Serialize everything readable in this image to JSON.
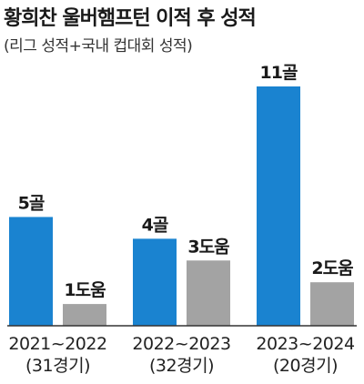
{
  "title": "황희찬 울버햄프턴 이적 후 성적",
  "subtitle": "(리그 성적+국내 컵대회 성적)",
  "colors": {
    "goals": "#1a83d0",
    "assists": "#a3a3a3",
    "axis": "#333333"
  },
  "chart_data": {
    "type": "bar",
    "categories": [
      "2021~2022",
      "2022~2023",
      "2023~2024"
    ],
    "category_notes": [
      "(31경기)",
      "(32경기)",
      "(20경기)"
    ],
    "series": [
      {
        "values": [
          5,
          4,
          11
        ],
        "labels": [
          "5골",
          "4골",
          "11골"
        ]
      },
      {
        "values": [
          1,
          3,
          2
        ],
        "labels": [
          "1도움",
          "3도움",
          "2도움"
        ]
      }
    ],
    "ylim": [
      0,
      11
    ],
    "grid": false,
    "legend": "none"
  }
}
